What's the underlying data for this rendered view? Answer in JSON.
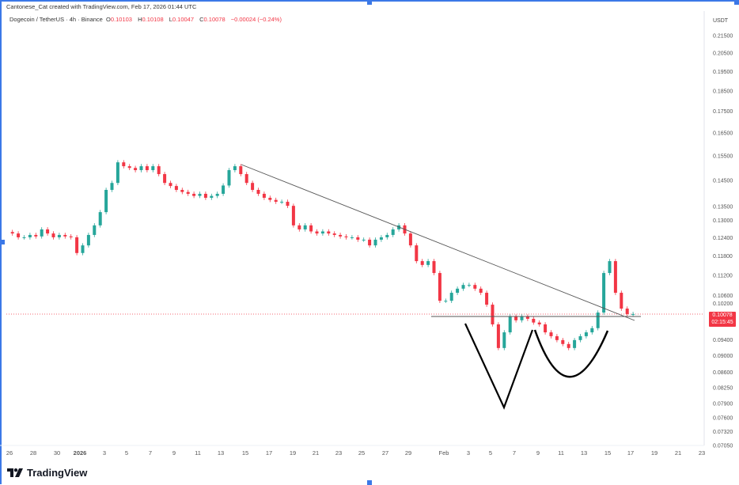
{
  "header": {
    "attribution": "Cantonese_Cat created with TradingView.com, Feb 17, 2026 01:44 UTC",
    "symbol": "Dogecoin / TetherUS · 4h · Binance",
    "open_label": "O",
    "open": "0.10103",
    "high_label": "H",
    "high": "0.10108",
    "low_label": "L",
    "low": "0.10047",
    "close_label": "C",
    "close": "0.10078",
    "change": "−0.00024 (−0.24%)"
  },
  "price_tag": {
    "price": "0.10078",
    "countdown": "02:15:45"
  },
  "logo": {
    "text": "TradingView"
  },
  "colors": {
    "up": "#26a69a",
    "down": "#f23645",
    "drawing": "#000000",
    "trendline": "#555555",
    "frame": "#3b78e7"
  },
  "chart_data": {
    "type": "candlestick",
    "title": "Dogecoin / TetherUS · 4h · Binance",
    "yunit": "USDT",
    "yscale": "log",
    "ylim": [
      0.0705,
      0.215
    ],
    "grid": false,
    "yticks": [
      "0.21500",
      "0.20500",
      "0.19500",
      "0.18500",
      "0.17500",
      "0.16500",
      "0.15500",
      "0.14500",
      "0.13500",
      "0.13000",
      "0.12400",
      "0.11800",
      "0.11200",
      "0.10600",
      "0.10200",
      "0.09400",
      "0.09000",
      "0.08600",
      "0.08250",
      "0.07900",
      "0.07600",
      "0.07320",
      "0.07050"
    ],
    "xticks": [
      "26",
      "28",
      "30",
      "2026",
      "3",
      "5",
      "7",
      "9",
      "11",
      "13",
      "15",
      "17",
      "19",
      "21",
      "23",
      "25",
      "27",
      "29",
      "Feb",
      "3",
      "5",
      "7",
      "9",
      "11",
      "13",
      "15",
      "17",
      "19",
      "21",
      "23"
    ],
    "time": [
      "Dec 26 00:00",
      "Dec 26 12:00",
      "Dec 27 00:00",
      "Dec 27 12:00",
      "Dec 28 00:00",
      "Dec 28 12:00",
      "Dec 29 00:00",
      "Dec 29 12:00",
      "Dec 30 00:00",
      "Dec 30 12:00",
      "Dec 31 00:00",
      "Dec 31 12:00",
      "Jan 1 00:00",
      "Jan 1 12:00",
      "Jan 2 00:00",
      "Jan 2 12:00",
      "Jan 3 00:00",
      "Jan 3 12:00",
      "Jan 4 00:00",
      "Jan 4 12:00",
      "Jan 5 00:00",
      "Jan 5 12:00",
      "Jan 6 00:00",
      "Jan 6 12:00",
      "Jan 7 00:00",
      "Jan 7 12:00",
      "Jan 8 00:00",
      "Jan 8 12:00",
      "Jan 9 00:00",
      "Jan 9 12:00",
      "Jan 10 00:00",
      "Jan 10 12:00",
      "Jan 11 00:00",
      "Jan 11 12:00",
      "Jan 12 00:00",
      "Jan 12 12:00",
      "Jan 13 00:00",
      "Jan 13 12:00",
      "Jan 14 00:00",
      "Jan 14 12:00",
      "Jan 15 00:00",
      "Jan 15 12:00",
      "Jan 16 00:00",
      "Jan 16 12:00",
      "Jan 17 00:00",
      "Jan 17 12:00",
      "Jan 18 00:00",
      "Jan 18 12:00",
      "Jan 19 00:00",
      "Jan 19 12:00",
      "Jan 20 00:00",
      "Jan 20 12:00",
      "Jan 21 00:00",
      "Jan 21 12:00",
      "Jan 22 00:00",
      "Jan 22 12:00",
      "Jan 23 00:00",
      "Jan 23 12:00",
      "Jan 24 00:00",
      "Jan 24 12:00",
      "Jan 25 00:00",
      "Jan 25 12:00",
      "Jan 26 00:00",
      "Jan 26 12:00",
      "Jan 27 00:00",
      "Jan 27 12:00",
      "Jan 28 00:00",
      "Jan 28 12:00",
      "Jan 29 00:00",
      "Jan 29 12:00",
      "Jan 30 00:00",
      "Jan 30 12:00",
      "Jan 31 00:00",
      "Jan 31 12:00",
      "Feb 1 00:00",
      "Feb 1 12:00",
      "Feb 2 00:00",
      "Feb 2 12:00",
      "Feb 3 00:00",
      "Feb 3 12:00",
      "Feb 4 00:00",
      "Feb 4 12:00",
      "Feb 5 00:00",
      "Feb 5 12:00",
      "Feb 6 00:00",
      "Feb 6 12:00",
      "Feb 7 00:00",
      "Feb 7 12:00",
      "Feb 8 00:00",
      "Feb 8 12:00",
      "Feb 9 00:00",
      "Feb 9 12:00",
      "Feb 10 00:00",
      "Feb 10 12:00",
      "Feb 11 00:00",
      "Feb 11 12:00",
      "Feb 12 00:00",
      "Feb 12 12:00",
      "Feb 13 00:00",
      "Feb 13 12:00",
      "Feb 14 00:00",
      "Feb 14 12:00",
      "Feb 15 00:00",
      "Feb 15 12:00",
      "Feb 16 00:00",
      "Feb 16 12:00",
      "Feb 17 00:00"
    ],
    "close": [
      0.1255,
      0.1242,
      0.1242,
      0.125,
      0.1245,
      0.1269,
      0.1255,
      0.1242,
      0.125,
      0.1245,
      0.1242,
      0.119,
      0.1215,
      0.125,
      0.1283,
      0.133,
      0.1413,
      0.144,
      0.1523,
      0.1507,
      0.15,
      0.1491,
      0.1507,
      0.1491,
      0.1507,
      0.1475,
      0.144,
      0.1428,
      0.1413,
      0.1405,
      0.1398,
      0.139,
      0.1398,
      0.1383,
      0.139,
      0.1398,
      0.143,
      0.1491,
      0.1507,
      0.1475,
      0.144,
      0.1413,
      0.1398,
      0.1383,
      0.1375,
      0.1368,
      0.1368,
      0.1353,
      0.1283,
      0.1269,
      0.1283,
      0.1262,
      0.1255,
      0.1262,
      0.1255,
      0.125,
      0.1245,
      0.1242,
      0.1242,
      0.1234,
      0.1234,
      0.1215,
      0.1234,
      0.1242,
      0.125,
      0.1269,
      0.1283,
      0.1255,
      0.1215,
      0.1164,
      0.1152,
      0.1164,
      0.1127,
      0.1045,
      0.1045,
      0.1068,
      0.108,
      0.1091,
      0.1091,
      0.108,
      0.1068,
      0.1034,
      0.098,
      0.0919,
      0.0959,
      0.1001,
      0.0991,
      0.1001,
      0.0995,
      0.0985,
      0.098,
      0.0959,
      0.0949,
      0.0939,
      0.0929,
      0.0919,
      0.0939,
      0.0949,
      0.0959,
      0.097,
      0.1012,
      0.1127,
      0.1164,
      0.1068,
      0.1023,
      0.1008,
      0.1008
    ]
  }
}
